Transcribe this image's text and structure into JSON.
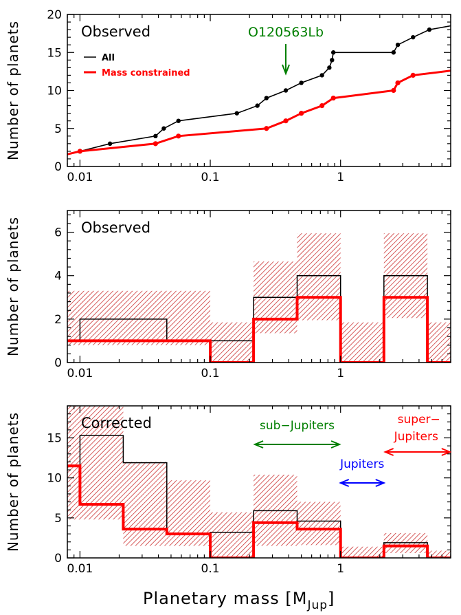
{
  "colors": {
    "black": "#000000",
    "red": "#ff0000",
    "green": "#007f00",
    "blue": "#0000ff",
    "hatch": "#cc3333"
  },
  "xlabel_main": "Planetary mass [M",
  "xlabel_sub": "Jup",
  "xlabel_close": "]",
  "chart_data": [
    {
      "type": "line",
      "panel_label": "Observed",
      "ylabel": "Number of planets",
      "xscale": "log",
      "xlim": [
        0.008,
        7
      ],
      "ylim": [
        0,
        20
      ],
      "xticks": [
        0.01,
        0.1,
        1
      ],
      "xtick_labels": [
        "0.01",
        "0.1",
        "1"
      ],
      "yticks": [
        0,
        5,
        10,
        15,
        20
      ],
      "ytick_labels": [
        "0",
        "5",
        "10",
        "15",
        "20"
      ],
      "legend": [
        {
          "name": "All",
          "color": "#000000"
        },
        {
          "name": "Mass constrained",
          "color": "#ff0000"
        }
      ],
      "annotation": {
        "text": "O120563Lb",
        "x": 0.38,
        "color": "#007f00"
      },
      "series": [
        {
          "name": "All",
          "color": "#000000",
          "x": [
            0.008,
            0.01,
            0.017,
            0.038,
            0.044,
            0.057,
            0.16,
            0.23,
            0.27,
            0.38,
            0.5,
            0.72,
            0.82,
            0.86,
            0.88,
            2.55,
            2.75,
            3.6,
            4.8,
            7
          ],
          "y": [
            1.6,
            2,
            3,
            4,
            5,
            6,
            7,
            8,
            9,
            10,
            11,
            12,
            13,
            14,
            15,
            15,
            16,
            17,
            18,
            18.5
          ],
          "points_x": [
            0.01,
            0.017,
            0.038,
            0.044,
            0.057,
            0.16,
            0.23,
            0.27,
            0.38,
            0.5,
            0.72,
            0.82,
            0.86,
            0.88,
            2.55,
            2.75,
            3.6,
            4.8
          ],
          "points_y": [
            2,
            3,
            4,
            5,
            6,
            7,
            8,
            9,
            10,
            11,
            12,
            13,
            14,
            15,
            15,
            16,
            17,
            18
          ]
        },
        {
          "name": "Mass constrained",
          "color": "#ff0000",
          "x": [
            0.008,
            0.01,
            0.038,
            0.057,
            0.27,
            0.38,
            0.5,
            0.72,
            0.88,
            2.55,
            2.75,
            3.6,
            7
          ],
          "y": [
            1.6,
            2,
            3,
            4,
            5,
            6,
            7,
            8,
            9,
            10,
            11,
            12,
            12.6
          ],
          "points_x": [
            0.01,
            0.038,
            0.057,
            0.27,
            0.38,
            0.5,
            0.72,
            0.88,
            2.55,
            2.75,
            3.6
          ],
          "points_y": [
            2,
            3,
            4,
            5,
            6,
            7,
            8,
            9,
            10,
            11,
            12
          ]
        }
      ]
    },
    {
      "type": "bar",
      "panel_label": "Observed",
      "ylabel": "Number of planets",
      "xscale": "log",
      "xlim": [
        0.008,
        7
      ],
      "ylim": [
        0,
        7
      ],
      "xticks": [
        0.01,
        0.1,
        1
      ],
      "xtick_labels": [
        "0.01",
        "0.1",
        "1"
      ],
      "yticks": [
        0,
        2,
        4,
        6
      ],
      "ytick_labels": [
        "0",
        "2",
        "4",
        "6"
      ],
      "bands": [
        {
          "x0": 0.008,
          "x1": 0.1,
          "lo": 0.8,
          "hi": 3.3
        },
        {
          "x0": 0.1,
          "x1": 0.215,
          "lo": 0,
          "hi": 1.85
        },
        {
          "x0": 0.215,
          "x1": 0.464,
          "lo": 1.35,
          "hi": 4.65
        },
        {
          "x0": 0.464,
          "x1": 1.0,
          "lo": 1.95,
          "hi": 5.95
        },
        {
          "x0": 1.0,
          "x1": 2.15,
          "lo": 0,
          "hi": 1.85
        },
        {
          "x0": 2.15,
          "x1": 4.64,
          "lo": 2.05,
          "hi": 5.95
        },
        {
          "x0": 4.64,
          "x1": 7,
          "lo": 0,
          "hi": 1.85
        }
      ],
      "series": [
        {
          "name": "All",
          "color": "#000000",
          "edges": [
            0.008,
            0.01,
            0.0464,
            0.1,
            0.215,
            0.464,
            1.0,
            2.15,
            4.64,
            7
          ],
          "values": [
            1,
            2,
            1,
            1,
            3,
            4,
            0,
            4,
            0
          ]
        },
        {
          "name": "Mass constrained",
          "color": "#ff0000",
          "edges": [
            0.008,
            0.1,
            0.215,
            0.464,
            1.0,
            2.15,
            4.64,
            7
          ],
          "values": [
            1,
            0,
            2,
            3,
            0,
            3,
            0
          ]
        }
      ]
    },
    {
      "type": "bar",
      "panel_label": "Corrected",
      "ylabel": "Number of planets",
      "xscale": "log",
      "xlim": [
        0.008,
        7
      ],
      "ylim": [
        0,
        19
      ],
      "xticks": [
        0.01,
        0.1,
        1
      ],
      "xtick_labels": [
        "0.01",
        "0.1",
        "1"
      ],
      "yticks": [
        0,
        5,
        10,
        15
      ],
      "ytick_labels": [
        "0",
        "5",
        "10",
        "15"
      ],
      "annotations": [
        {
          "text": "sub−Jupiters",
          "color": "#007f00",
          "x0": 0.22,
          "x1": 0.98
        },
        {
          "text": "Jupiters",
          "color": "#0000ff",
          "x0": 1.0,
          "x1": 2.15
        },
        {
          "text": "super−",
          "text2": "Jupiters",
          "color": "#ff0000",
          "x0": 2.2,
          "x1": 6.9
        }
      ],
      "bands": [
        {
          "x0": 0.008,
          "x1": 0.0215,
          "lo": 4.8,
          "hi": 19
        },
        {
          "x0": 0.0215,
          "x1": 0.0464,
          "lo": 1.5,
          "hi": 12
        },
        {
          "x0": 0.0464,
          "x1": 0.1,
          "lo": 1.5,
          "hi": 9.7
        },
        {
          "x0": 0.1,
          "x1": 0.215,
          "lo": 0,
          "hi": 5.7
        },
        {
          "x0": 0.215,
          "x1": 0.464,
          "lo": 1.5,
          "hi": 10.4
        },
        {
          "x0": 0.464,
          "x1": 1.0,
          "lo": 1.6,
          "hi": 7.0
        },
        {
          "x0": 1.0,
          "x1": 2.15,
          "lo": 0,
          "hi": 1.4
        },
        {
          "x0": 2.15,
          "x1": 4.64,
          "lo": 0.6,
          "hi": 3.1
        },
        {
          "x0": 4.64,
          "x1": 7,
          "lo": 0,
          "hi": 0.9
        }
      ],
      "series": [
        {
          "name": "All",
          "color": "#000000",
          "edges": [
            0.008,
            0.01,
            0.0215,
            0.0464,
            0.1,
            0.215,
            0.464,
            1.0,
            2.15,
            4.64,
            7
          ],
          "values": [
            11.5,
            15.3,
            11.9,
            3.0,
            3.2,
            5.9,
            4.6,
            0,
            1.9,
            0
          ]
        },
        {
          "name": "Mass constrained",
          "color": "#ff0000",
          "edges": [
            0.008,
            0.01,
            0.0215,
            0.0464,
            0.1,
            0.215,
            0.464,
            1.0,
            2.15,
            4.64,
            7
          ],
          "values": [
            11.5,
            6.7,
            3.6,
            3.0,
            0,
            4.4,
            3.6,
            0,
            1.5,
            0
          ]
        }
      ]
    }
  ]
}
